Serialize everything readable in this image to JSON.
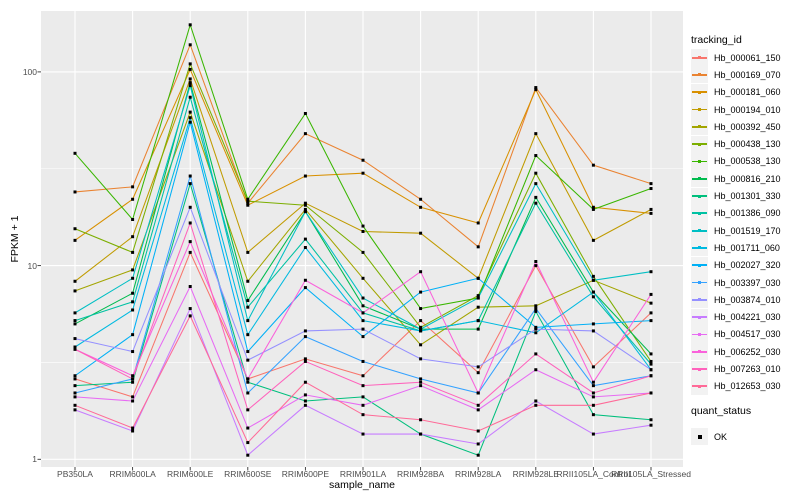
{
  "figure": {
    "background": "#FFFFFF",
    "panel_background": "#EBEBEB",
    "grid_color": "#FFFFFF",
    "tick_mark_color": "#333333",
    "tick_label_color": "#4D4D4D",
    "marker_color": "#000000"
  },
  "legend": {
    "tracking_title": "tracking_id",
    "quant_title": "quant_status",
    "quant_items": [
      {
        "label": "OK",
        "marker": "black-filled-square"
      }
    ]
  },
  "chart_data": {
    "type": "line",
    "title": "",
    "xlabel": "sample_name",
    "ylabel": "FPKM + 1",
    "y_scale": "log10",
    "ylim": [
      1,
      206
    ],
    "y_ticks": [
      1,
      10,
      100
    ],
    "y_tick_labels": [
      "1",
      "10",
      "100"
    ],
    "y_minor_gridlines": [
      3.162,
      31.62
    ],
    "grid": "white-on-gray",
    "legend_position": "right",
    "marker": "black-filled-square",
    "quant_status": "OK",
    "categories": [
      "PB350LA",
      "RRIM600LA",
      "RRIM600LE",
      "RRIM600SE",
      "RRIM600PE",
      "RRIM901LA",
      "RRIM928BA",
      "RRIM928LA",
      "RRIM928LE",
      "RRII105LA_Control",
      "RRII105LA_Stressed"
    ],
    "series": [
      {
        "name": "Hb_000061_150",
        "color": "#F8766D",
        "values": [
          2.6,
          2.1,
          11.7,
          2.6,
          3.3,
          2.7,
          5.2,
          2.8,
          10.0,
          3.0,
          5.7
        ]
      },
      {
        "name": "Hb_000169_070",
        "color": "#EA8331",
        "values": [
          24,
          25.5,
          138,
          21,
          48,
          35,
          22,
          12.5,
          83,
          33,
          26.5
        ]
      },
      {
        "name": "Hb_000181_060",
        "color": "#D89000",
        "values": [
          13.5,
          22,
          103,
          20.5,
          29,
          30,
          20,
          16.6,
          81,
          20,
          18.6
        ]
      },
      {
        "name": "Hb_000194_010",
        "color": "#C09B00",
        "values": [
          8.3,
          14.1,
          92,
          11.7,
          21,
          15,
          14.7,
          8.6,
          48,
          13.5,
          19.5
        ]
      },
      {
        "name": "Hb_000392_450",
        "color": "#A3A500",
        "values": [
          7.4,
          9.5,
          62,
          8.3,
          19.5,
          8.6,
          3.9,
          6.1,
          6.2,
          8.4,
          6.4
        ]
      },
      {
        "name": "Hb_000438_130",
        "color": "#7CAE00",
        "values": [
          15.5,
          11.7,
          110,
          21.5,
          20.5,
          11.7,
          4.8,
          7.0,
          30,
          8.8,
          3.2
        ]
      },
      {
        "name": "Hb_000538_130",
        "color": "#39B600",
        "values": [
          38,
          17.3,
          175,
          22,
          61,
          16,
          6.0,
          6.8,
          37,
          19.5,
          25
        ]
      },
      {
        "name": "Hb_000816_210",
        "color": "#00BB4E",
        "values": [
          5.0,
          7.2,
          88,
          6.6,
          19,
          6.2,
          4.7,
          4.7,
          22.5,
          7.3,
          3.5
        ]
      },
      {
        "name": "Hb_001301_330",
        "color": "#00BF7D",
        "values": [
          2.4,
          2.5,
          26.5,
          2.5,
          2.0,
          2.1,
          1.35,
          1.05,
          5.8,
          1.7,
          1.6
        ]
      },
      {
        "name": "Hb_001386_090",
        "color": "#00C1A3",
        "values": [
          5.2,
          6.5,
          74,
          6.1,
          13.7,
          5.7,
          4.6,
          5.2,
          21,
          6.9,
          3.1
        ]
      },
      {
        "name": "Hb_001519_170",
        "color": "#00BFC4",
        "values": [
          5.7,
          8.6,
          85,
          5.2,
          19,
          6.8,
          4.7,
          6.8,
          26.5,
          8.4,
          9.3
        ]
      },
      {
        "name": "Hb_001711_060",
        "color": "#00BAE0",
        "values": [
          3.8,
          5.9,
          58,
          4.4,
          12.4,
          5.2,
          4.6,
          5.2,
          4.5,
          7.3,
          2.9
        ]
      },
      {
        "name": "Hb_002027_320",
        "color": "#00B0F6",
        "values": [
          2.7,
          4.4,
          55,
          3.6,
          7.7,
          4.3,
          7.3,
          8.6,
          4.8,
          5.0,
          5.2
        ]
      },
      {
        "name": "Hb_003397_030",
        "color": "#35A2FF",
        "values": [
          2.2,
          2.6,
          29,
          2.2,
          4.3,
          3.2,
          2.6,
          2.2,
          6.0,
          2.4,
          2.7
        ]
      },
      {
        "name": "Hb_003874_010",
        "color": "#9590FF",
        "values": [
          4.2,
          3.6,
          20,
          3.25,
          4.6,
          4.7,
          3.3,
          3.0,
          4.7,
          4.6,
          2.9
        ]
      },
      {
        "name": "Hb_004221_030",
        "color": "#C77CFF",
        "values": [
          1.8,
          1.4,
          6.0,
          1.05,
          1.9,
          1.35,
          1.35,
          1.2,
          2.0,
          1.35,
          1.5
        ]
      },
      {
        "name": "Hb_004517_030",
        "color": "#E76BF3",
        "values": [
          2.1,
          2.0,
          7.8,
          1.45,
          2.15,
          1.9,
          2.4,
          1.8,
          2.9,
          2.1,
          2.2
        ]
      },
      {
        "name": "Hb_006252_030",
        "color": "#FA62DB",
        "values": [
          3.7,
          2.7,
          13.3,
          2.6,
          8.4,
          5.7,
          9.3,
          2.2,
          10.5,
          2.5,
          7.1
        ]
      },
      {
        "name": "Hb_007263_010",
        "color": "#FF62BC",
        "values": [
          3.7,
          2.6,
          16.6,
          1.8,
          3.2,
          2.4,
          2.5,
          1.9,
          3.5,
          2.2,
          2.7
        ]
      },
      {
        "name": "Hb_012653_030",
        "color": "#FF6A98",
        "values": [
          1.9,
          1.45,
          5.5,
          1.22,
          2.5,
          1.7,
          1.6,
          1.4,
          1.9,
          1.9,
          2.2
        ]
      }
    ]
  }
}
